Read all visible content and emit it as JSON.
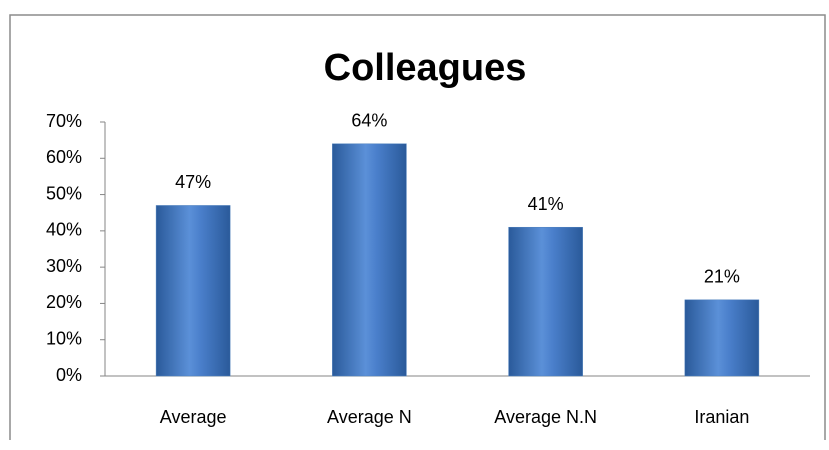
{
  "chart_data": {
    "type": "bar",
    "title": "Colleagues",
    "categories": [
      "Average",
      "Average N",
      "Average N.N",
      "Iranian"
    ],
    "values": [
      47,
      64,
      41,
      21
    ],
    "value_labels": [
      "47%",
      "64%",
      "41%",
      "21%"
    ],
    "color": "#4f81bd",
    "ylim": [
      0,
      70
    ],
    "yticks": [
      {
        "value": 0,
        "label": "0%"
      },
      {
        "value": 10,
        "label": "10%"
      },
      {
        "value": 20,
        "label": "20%"
      },
      {
        "value": 30,
        "label": "30%"
      },
      {
        "value": 40,
        "label": "40%"
      },
      {
        "value": 50,
        "label": "50%"
      },
      {
        "value": 60,
        "label": "60%"
      },
      {
        "value": 70,
        "label": "70%"
      }
    ],
    "grid": false
  }
}
